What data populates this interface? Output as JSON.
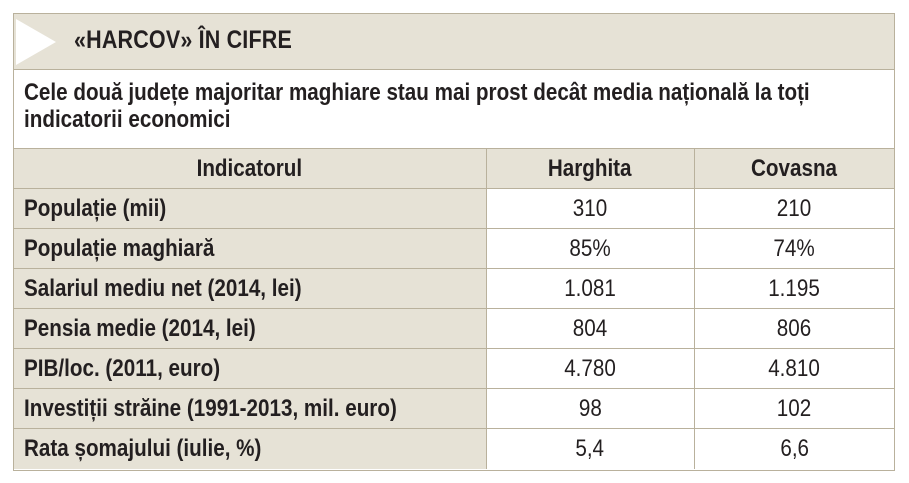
{
  "banner": {
    "title": "«HARCOV» ÎN CIFRE"
  },
  "subtitle": "Cele două județe majoritar maghiare stau mai prost decât media națională la toți indicatorii economici",
  "colors": {
    "panel_background": "#e6e2d6",
    "arrow": "#ffffff",
    "border": "#b9b19c",
    "text": "#231f20"
  },
  "table": {
    "headers": [
      "Indicatorul",
      "Harghita",
      "Covasna"
    ],
    "rows": [
      {
        "label": "Populație (mii)",
        "harghita": "310",
        "covasna": "210"
      },
      {
        "label": "Populație maghiară",
        "harghita": "85%",
        "covasna": "74%"
      },
      {
        "label": "Salariul mediu net (2014, lei)",
        "harghita": "1.081",
        "covasna": "1.195"
      },
      {
        "label": "Pensia medie (2014, lei)",
        "harghita": "804",
        "covasna": "806"
      },
      {
        "label": "PIB/loc. (2011, euro)",
        "harghita": "4.780",
        "covasna": "4.810"
      },
      {
        "label": "Investiții străine (1991-2013, mil. euro)",
        "harghita": "98",
        "covasna": "102"
      },
      {
        "label": "Rata șomajului (iulie, %)",
        "harghita": "5,4",
        "covasna": "6,6"
      }
    ]
  }
}
